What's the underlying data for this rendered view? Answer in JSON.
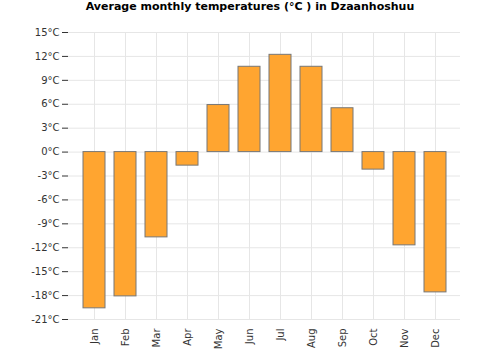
{
  "chart_data": {
    "type": "bar",
    "title": "Average monthly temperatures (°C ) in Dzaanhoshuu",
    "categories": [
      "Jan",
      "Feb",
      "Mar",
      "Apr",
      "May",
      "Jun",
      "Jul",
      "Aug",
      "Sep",
      "Oct",
      "Nov",
      "Dec"
    ],
    "values": [
      -19.6,
      -18.1,
      -10.7,
      -1.7,
      5.9,
      10.7,
      12.2,
      10.7,
      5.5,
      -2.2,
      -11.7,
      -17.6
    ],
    "color": "#ffa530",
    "ylim": [
      -21,
      15
    ],
    "yticks": [
      {
        "value": -21,
        "label": "-21°C"
      },
      {
        "value": -18,
        "label": "-18°C"
      },
      {
        "value": -15,
        "label": "-15°C"
      },
      {
        "value": -12,
        "label": "-12°C"
      },
      {
        "value": -9,
        "label": "-9°C"
      },
      {
        "value": -6,
        "label": "-6°C"
      },
      {
        "value": -3,
        "label": "-3°C"
      },
      {
        "value": 0,
        "label": "0°C"
      },
      {
        "value": 3,
        "label": "3°C"
      },
      {
        "value": 6,
        "label": "6°C"
      },
      {
        "value": 9,
        "label": "9°C"
      },
      {
        "value": 12,
        "label": "12°C"
      },
      {
        "value": 15,
        "label": "15°C"
      }
    ],
    "grid": true
  }
}
